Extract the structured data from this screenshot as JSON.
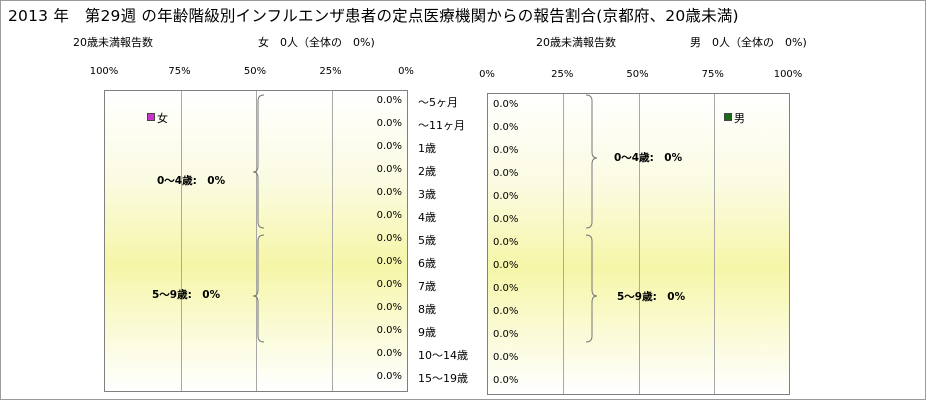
{
  "title": "2013 年　第29週 の年齢階級別インフルエンザ患者の定点医療機関からの報告割合(京都府、20歳未満)",
  "female_summary": {
    "label": "20歳未満報告数",
    "value": "女　0人（全体の　0%)"
  },
  "male_summary": {
    "label": "20歳未満報告数",
    "value": "男　0人（全体の　0%)"
  },
  "age_groups": [
    "～5ヶ月",
    "～11ヶ月",
    "1歳",
    "2歳",
    "3歳",
    "4歳",
    "5歳",
    "6歳",
    "7歳",
    "8歳",
    "9歳",
    "10～14歳",
    "15～19歳"
  ],
  "chart_data": [
    {
      "type": "bar",
      "orientation": "horizontal",
      "direction": "right-to-left",
      "series": [
        {
          "name": "女",
          "color": "#cc33cc",
          "values": [
            0,
            0,
            0,
            0,
            0,
            0,
            0,
            0,
            0,
            0,
            0,
            0,
            0
          ]
        }
      ],
      "value_labels": [
        "0.0%",
        "0.0%",
        "0.0%",
        "0.0%",
        "0.0%",
        "0.0%",
        "0.0%",
        "0.0%",
        "0.0%",
        "0.0%",
        "0.0%",
        "0.0%",
        "0.0%"
      ],
      "x_ticks": [
        "100%",
        "75%",
        "50%",
        "25%",
        "0%"
      ],
      "xlim": [
        0,
        100
      ],
      "grid": true,
      "group_labels": [
        "0～4歳:　0%",
        "5～9歳:　0%"
      ]
    },
    {
      "type": "bar",
      "orientation": "horizontal",
      "direction": "left-to-right",
      "series": [
        {
          "name": "男",
          "color": "#1a6b1a",
          "values": [
            0,
            0,
            0,
            0,
            0,
            0,
            0,
            0,
            0,
            0,
            0,
            0,
            0
          ]
        }
      ],
      "value_labels": [
        "0.0%",
        "0.0%",
        "0.0%",
        "0.0%",
        "0.0%",
        "0.0%",
        "0.0%",
        "0.0%",
        "0.0%",
        "0.0%",
        "0.0%",
        "0.0%",
        "0.0%"
      ],
      "x_ticks": [
        "0%",
        "25%",
        "50%",
        "75%",
        "100%"
      ],
      "xlim": [
        0,
        100
      ],
      "grid": true,
      "group_labels": [
        "0～4歳:　0%",
        "5～9歳:　0%"
      ]
    }
  ]
}
